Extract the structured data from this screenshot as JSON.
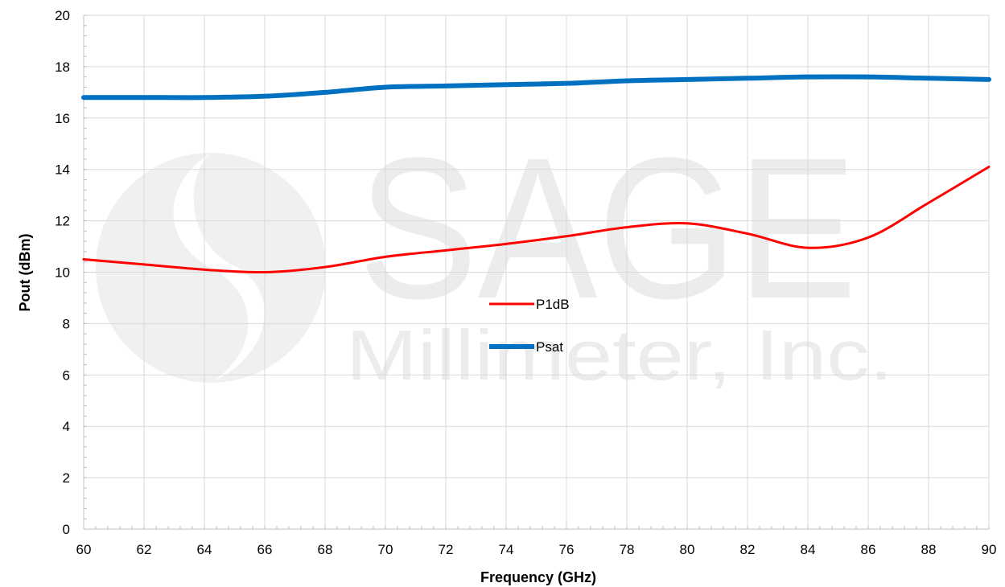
{
  "chart_data": {
    "type": "line",
    "xlabel": "Frequency (GHz)",
    "ylabel": "Pout (dBm)",
    "xlim": [
      60,
      90
    ],
    "ylim": [
      0,
      20
    ],
    "x_ticks": [
      60,
      62,
      64,
      66,
      68,
      70,
      72,
      74,
      76,
      78,
      80,
      82,
      84,
      86,
      88,
      90
    ],
    "y_ticks": [
      0,
      2,
      4,
      6,
      8,
      10,
      12,
      14,
      16,
      18,
      20
    ],
    "grid": true,
    "legend_placement": "center",
    "series": [
      {
        "name": "P1dB",
        "color": "#ff0000",
        "x": [
          60,
          62,
          64,
          66,
          68,
          70,
          72,
          74,
          76,
          78,
          80,
          82,
          84,
          86,
          88,
          90
        ],
        "y": [
          10.5,
          10.3,
          10.1,
          10.0,
          10.2,
          10.6,
          10.85,
          11.1,
          11.4,
          11.75,
          11.9,
          11.5,
          10.95,
          11.35,
          12.7,
          14.1
        ]
      },
      {
        "name": "Psat",
        "color": "#0070c0",
        "x": [
          60,
          62,
          64,
          66,
          68,
          70,
          72,
          74,
          76,
          78,
          80,
          82,
          84,
          86,
          88,
          90
        ],
        "y": [
          16.8,
          16.8,
          16.8,
          16.85,
          17.0,
          17.2,
          17.25,
          17.3,
          17.35,
          17.45,
          17.5,
          17.55,
          17.6,
          17.6,
          17.55,
          17.5
        ]
      }
    ]
  },
  "watermark": {
    "title": "SAGE",
    "subtitle": "Millimeter, Inc."
  }
}
